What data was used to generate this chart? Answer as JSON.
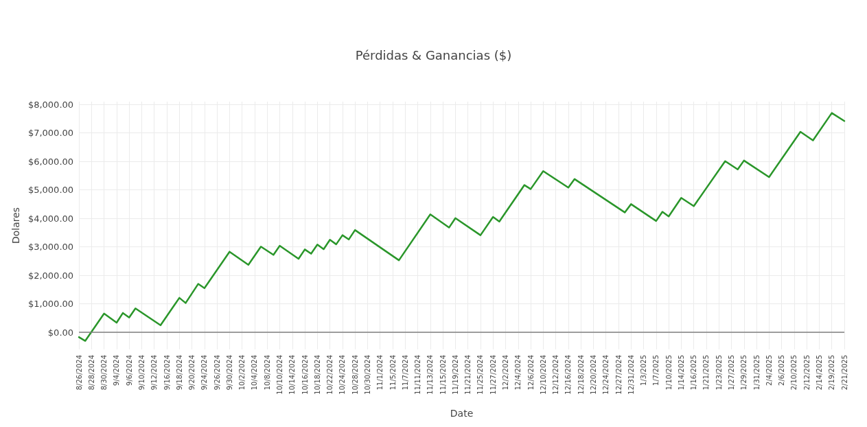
{
  "chart_data": {
    "type": "line",
    "title": "Pérdidas & Ganancias ($)",
    "xlabel": "Date",
    "ylabel": "Dolares",
    "categories": [
      "8/26/2024",
      null,
      "8/28/2024",
      null,
      "8/30/2024",
      null,
      "9/4/2024",
      null,
      "9/6/2024",
      null,
      "9/10/2024",
      null,
      "9/12/2024",
      null,
      "9/16/2024",
      null,
      "9/18/2024",
      null,
      "9/20/2024",
      null,
      "9/24/2024",
      null,
      "9/26/2024",
      null,
      "9/30/2024",
      null,
      "10/2/2024",
      null,
      "10/4/2024",
      null,
      "10/8/2024",
      null,
      "10/10/2024",
      null,
      "10/14/2024",
      null,
      "10/16/2024",
      null,
      "10/18/2024",
      null,
      "10/22/2024",
      null,
      "10/24/2024",
      null,
      "10/28/2024",
      null,
      "10/30/2024",
      null,
      "11/1/2024",
      null,
      "11/5/2024",
      null,
      "11/7/2024",
      null,
      "11/11/2024",
      null,
      "11/13/2024",
      null,
      "11/15/2024",
      null,
      "11/19/2024",
      null,
      "11/21/2024",
      null,
      "11/25/2024",
      null,
      "11/27/2024",
      null,
      "12/2/2024",
      null,
      "12/4/2024",
      null,
      "12/6/2024",
      null,
      "12/10/2024",
      null,
      "12/12/2024",
      null,
      "12/16/2024",
      null,
      "12/18/2024",
      null,
      "12/20/2024",
      null,
      "12/24/2024",
      null,
      "12/27/2024",
      null,
      "12/31/2024",
      null,
      "1/3/2025",
      null,
      "1/7/2025",
      null,
      "1/10/2025",
      null,
      "1/14/2025",
      null,
      "1/16/2025",
      null,
      "1/21/2025",
      null,
      "1/23/2025",
      null,
      "1/27/2025",
      null,
      "1/29/2025",
      null,
      "1/31/2025",
      null,
      "2/4/2025",
      null,
      "2/6/2025",
      null,
      "2/10/2025",
      null,
      "2/12/2025",
      null,
      "2/14/2025",
      null,
      "2/19/2025",
      null,
      "2/21/2025"
    ],
    "series": [
      {
        "color": "#2a962a",
        "values": [
          -170,
          -300,
          null,
          null,
          660,
          null,
          340,
          680,
          520,
          840,
          null,
          null,
          null,
          250,
          null,
          null,
          1210,
          1030,
          null,
          1700,
          1550,
          null,
          null,
          null,
          2830,
          null,
          null,
          2370,
          null,
          3010,
          null,
          2720,
          3040,
          null,
          null,
          2580,
          2910,
          2760,
          3080,
          2920,
          3250,
          3090,
          3410,
          3260,
          3590,
          null,
          null,
          null,
          null,
          null,
          null,
          2530,
          null,
          null,
          null,
          null,
          4140,
          null,
          null,
          3680,
          4010,
          null,
          null,
          null,
          3410,
          null,
          4050,
          3890,
          null,
          null,
          null,
          5170,
          5030,
          null,
          5660,
          null,
          null,
          null,
          5080,
          5380,
          null,
          null,
          null,
          null,
          null,
          null,
          null,
          4210,
          4500,
          null,
          null,
          null,
          3910,
          4230,
          4070,
          null,
          4720,
          null,
          4430,
          null,
          null,
          null,
          null,
          6010,
          null,
          5720,
          6030,
          null,
          null,
          null,
          5450,
          null,
          null,
          null,
          null,
          7040,
          null,
          6740,
          null,
          null,
          7700,
          null,
          7420
        ]
      }
    ],
    "ylim": [
      -600,
      8100
    ],
    "yticks": [
      {
        "value": 0,
        "label": "$0.00"
      },
      {
        "value": 1000,
        "label": "$1,000.00"
      },
      {
        "value": 2000,
        "label": "$2,000.00"
      },
      {
        "value": 3000,
        "label": "$3,000.00"
      },
      {
        "value": 4000,
        "label": "$4,000.00"
      },
      {
        "value": 5000,
        "label": "$5,000.00"
      },
      {
        "value": 6000,
        "label": "$6,000.00"
      },
      {
        "value": 7000,
        "label": "$7,000.00"
      },
      {
        "value": 8000,
        "label": "$8,000.00"
      }
    ],
    "ref_lines": [
      {
        "axis": "y",
        "value": 0,
        "color": "#7f7f7f"
      }
    ],
    "grid": true,
    "marker": "none",
    "line_style": "solid"
  }
}
